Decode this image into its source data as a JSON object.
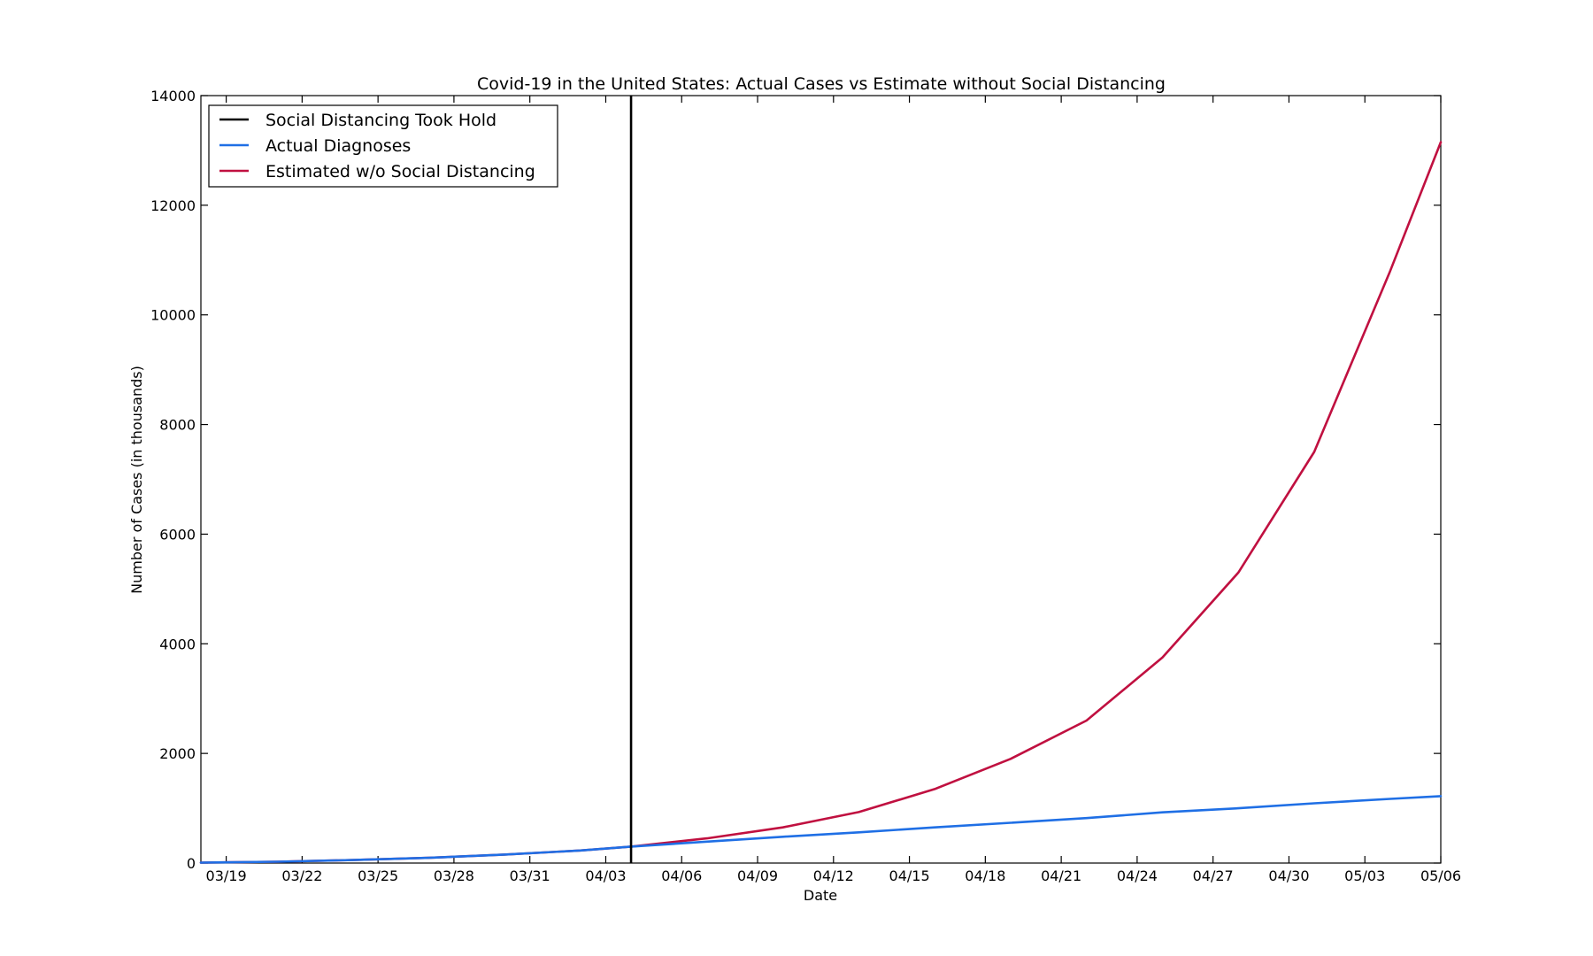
{
  "chart_data": {
    "type": "line",
    "title": "Covid-19 in the United States: Actual Cases vs Estimate without Social Distancing",
    "xlabel": "Date",
    "ylabel": "Number of Cases (in thousands)",
    "xlim": [
      "03/18",
      "05/06"
    ],
    "ylim": [
      0,
      14000
    ],
    "yticks": [
      0,
      2000,
      4000,
      6000,
      8000,
      10000,
      12000,
      14000
    ],
    "xticks": [
      "03/19",
      "03/22",
      "03/25",
      "03/28",
      "03/31",
      "04/03",
      "04/06",
      "04/09",
      "04/12",
      "04/15",
      "04/18",
      "04/21",
      "04/24",
      "04/27",
      "04/30",
      "05/03",
      "05/06"
    ],
    "grid": false,
    "legend_position": "top-left",
    "vline": {
      "name": "Social Distancing Took Hold",
      "x": "04/04",
      "color": "#000000"
    },
    "x": [
      "03/18",
      "03/21",
      "03/24",
      "03/27",
      "03/30",
      "04/02",
      "04/04",
      "04/07",
      "04/10",
      "04/13",
      "04/16",
      "04/19",
      "04/22",
      "04/25",
      "04/28",
      "05/01",
      "05/04",
      "05/06"
    ],
    "series": [
      {
        "name": "Actual Diagnoses",
        "color": "#1f6fe5",
        "values": [
          8,
          25,
          55,
          95,
          155,
          230,
          300,
          390,
          480,
          560,
          650,
          735,
          820,
          925,
          1000,
          1090,
          1170,
          1220
        ]
      },
      {
        "name": "Estimated w/o Social Distancing",
        "color": "#c01040",
        "values": [
          8,
          25,
          55,
          95,
          155,
          230,
          300,
          450,
          650,
          930,
          1350,
          1900,
          2600,
          3750,
          5300,
          7500,
          10800,
          13150
        ]
      }
    ]
  }
}
